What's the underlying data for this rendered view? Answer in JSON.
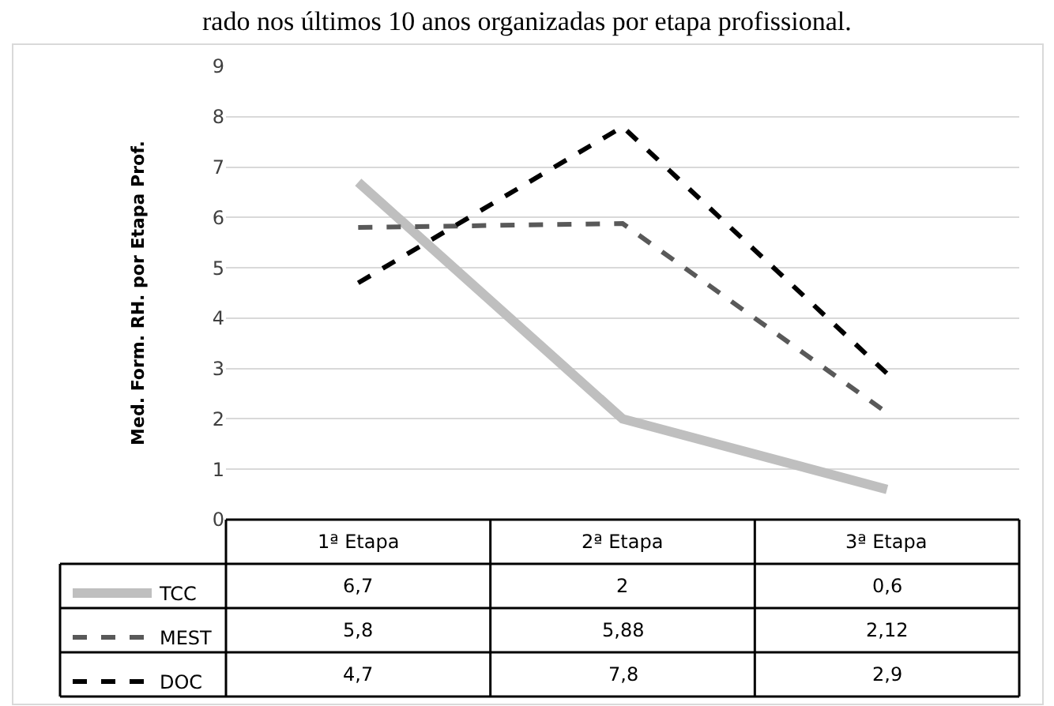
{
  "chart_data": {
    "type": "line",
    "title": "rado nos últimos 10 anos organizadas por etapa profissional.",
    "ylabel": "Med. Form. RH. por Etapa Prof.",
    "categories": [
      "1ª Etapa",
      "2ª Etapa",
      "3ª Etapa"
    ],
    "ylim": [
      0,
      9
    ],
    "yticks": [
      0,
      1,
      2,
      3,
      4,
      5,
      6,
      7,
      8,
      9
    ],
    "grid": "y",
    "legend": "bottom",
    "marker": "none",
    "series": [
      {
        "name": "TCC",
        "color": "#bfbfbf",
        "line_style": "solid",
        "values": [
          6.7,
          2,
          0.6
        ],
        "value_labels": [
          "6,7",
          "2",
          "0,6"
        ]
      },
      {
        "name": "MEST",
        "color": "#595959",
        "line_style": "dashed",
        "values": [
          5.8,
          5.88,
          2.12
        ],
        "value_labels": [
          "5,8",
          "5,88",
          "2,12"
        ]
      },
      {
        "name": "DOC",
        "color": "#000000",
        "line_style": "dashed",
        "values": [
          4.7,
          7.8,
          2.9
        ],
        "value_labels": [
          "4,7",
          "7,8",
          "2,9"
        ]
      }
    ]
  }
}
